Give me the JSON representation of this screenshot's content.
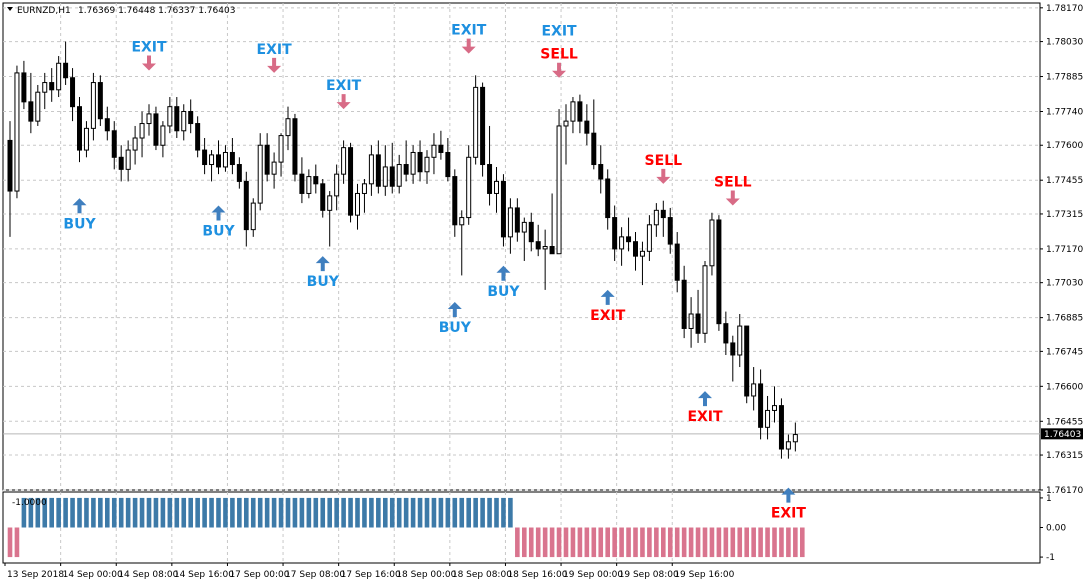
{
  "header": {
    "symbol_tf": "EURNZD,H1",
    "ohlc": "1.76369 1.76448 1.76337 1.76403"
  },
  "colors": {
    "bull": "#ffffff",
    "bear": "#000000",
    "buy": "#3f7fbf",
    "buy_text": "#1e90e0",
    "exit_blue": "#1e90e0",
    "sell": "#ff0000",
    "arrow_pink": "#d86b86",
    "hist_pos": "#3d7aa8",
    "hist_neg": "#d9748e",
    "grid": "#c8c8c8"
  },
  "chart_data": [
    {
      "type": "candlestick",
      "symbol": "EURNZD",
      "timeframe": "H1",
      "ylim": [
        1.7617,
        1.7819
      ],
      "y_ticks": [
        "1.78170",
        "1.78030",
        "1.77885",
        "1.77740",
        "1.77600",
        "1.77455",
        "1.77315",
        "1.77170",
        "1.77030",
        "1.76885",
        "1.76745",
        "1.76600",
        "1.76455",
        "1.76315",
        "1.76170"
      ],
      "x_ticks": [
        "13 Sep 2018",
        "14 Sep 00:00",
        "14 Sep 08:00",
        "14 Sep 16:00",
        "17 Sep 00:00",
        "17 Sep 08:00",
        "17 Sep 16:00",
        "18 Sep 00:00",
        "18 Sep 08:00",
        "18 Sep 16:00",
        "19 Sep 00:00",
        "19 Sep 08:00",
        "19 Sep 16:00"
      ],
      "current_price": "1.76403",
      "candles": [
        [
          1.7762,
          1.777,
          1.7722,
          1.7741
        ],
        [
          1.7741,
          1.7793,
          1.7738,
          1.779
        ],
        [
          1.779,
          1.7795,
          1.7775,
          1.7778
        ],
        [
          1.7778,
          1.779,
          1.7765,
          1.777
        ],
        [
          1.777,
          1.7785,
          1.7768,
          1.7782
        ],
        [
          1.7782,
          1.779,
          1.7775,
          1.7786
        ],
        [
          1.7786,
          1.7792,
          1.7778,
          1.7783
        ],
        [
          1.7783,
          1.7797,
          1.778,
          1.7794
        ],
        [
          1.7794,
          1.7803,
          1.7785,
          1.7788
        ],
        [
          1.7788,
          1.7792,
          1.777,
          1.7776
        ],
        [
          1.7776,
          1.778,
          1.7753,
          1.7758
        ],
        [
          1.7758,
          1.777,
          1.7755,
          1.7767
        ],
        [
          1.7767,
          1.779,
          1.7762,
          1.7786
        ],
        [
          1.7786,
          1.7789,
          1.7768,
          1.7771
        ],
        [
          1.7771,
          1.7776,
          1.7762,
          1.7766
        ],
        [
          1.7766,
          1.777,
          1.775,
          1.7755
        ],
        [
          1.7755,
          1.776,
          1.7745,
          1.775
        ],
        [
          1.775,
          1.7762,
          1.7745,
          1.7758
        ],
        [
          1.7758,
          1.7768,
          1.7752,
          1.7763
        ],
        [
          1.7763,
          1.7774,
          1.7755,
          1.7769
        ],
        [
          1.7769,
          1.7777,
          1.7764,
          1.7773
        ],
        [
          1.7773,
          1.7776,
          1.7758,
          1.776
        ],
        [
          1.776,
          1.777,
          1.7755,
          1.7768
        ],
        [
          1.7768,
          1.778,
          1.7765,
          1.7776
        ],
        [
          1.7776,
          1.778,
          1.7763,
          1.7766
        ],
        [
          1.7766,
          1.7777,
          1.7762,
          1.7774
        ],
        [
          1.7774,
          1.7779,
          1.7765,
          1.7769
        ],
        [
          1.7769,
          1.7772,
          1.7755,
          1.7758
        ],
        [
          1.7758,
          1.7763,
          1.7748,
          1.7752
        ],
        [
          1.7752,
          1.7758,
          1.7745,
          1.7756
        ],
        [
          1.7756,
          1.7762,
          1.7748,
          1.7751
        ],
        [
          1.7751,
          1.776,
          1.7749,
          1.7757
        ],
        [
          1.7757,
          1.7763,
          1.7748,
          1.7752
        ],
        [
          1.7752,
          1.7755,
          1.7742,
          1.7745
        ],
        [
          1.7745,
          1.7749,
          1.7718,
          1.7725
        ],
        [
          1.7725,
          1.7738,
          1.7722,
          1.7736
        ],
        [
          1.7736,
          1.7765,
          1.7733,
          1.776
        ],
        [
          1.776,
          1.7765,
          1.7745,
          1.7748
        ],
        [
          1.7748,
          1.7757,
          1.7742,
          1.7753
        ],
        [
          1.7753,
          1.7765,
          1.7747,
          1.7764
        ],
        [
          1.7764,
          1.7776,
          1.7758,
          1.7771
        ],
        [
          1.7771,
          1.7773,
          1.7745,
          1.7748
        ],
        [
          1.7748,
          1.7755,
          1.7736,
          1.774
        ],
        [
          1.774,
          1.775,
          1.7738,
          1.7747
        ],
        [
          1.7747,
          1.7752,
          1.774,
          1.7744
        ],
        [
          1.7744,
          1.7746,
          1.773,
          1.7733
        ],
        [
          1.7733,
          1.7741,
          1.7718,
          1.7739
        ],
        [
          1.7739,
          1.7752,
          1.7733,
          1.7748
        ],
        [
          1.7748,
          1.7762,
          1.7744,
          1.7759
        ],
        [
          1.7759,
          1.7761,
          1.7728,
          1.7731
        ],
        [
          1.7731,
          1.7744,
          1.7725,
          1.774
        ],
        [
          1.774,
          1.7746,
          1.7732,
          1.7744
        ],
        [
          1.7744,
          1.776,
          1.7739,
          1.7756
        ],
        [
          1.7756,
          1.7762,
          1.774,
          1.7743
        ],
        [
          1.7743,
          1.776,
          1.7739,
          1.7751
        ],
        [
          1.7751,
          1.7761,
          1.774,
          1.7743
        ],
        [
          1.7743,
          1.7756,
          1.774,
          1.7752
        ],
        [
          1.7752,
          1.7762,
          1.7745,
          1.7748
        ],
        [
          1.7748,
          1.776,
          1.7744,
          1.7757
        ],
        [
          1.7757,
          1.7762,
          1.7745,
          1.7749
        ],
        [
          1.7749,
          1.7758,
          1.7744,
          1.7755
        ],
        [
          1.7755,
          1.7765,
          1.7748,
          1.776
        ],
        [
          1.776,
          1.7766,
          1.7754,
          1.7757
        ],
        [
          1.7757,
          1.7763,
          1.7745,
          1.7747
        ],
        [
          1.7747,
          1.775,
          1.7722,
          1.7727
        ],
        [
          1.7727,
          1.7733,
          1.7706,
          1.773
        ],
        [
          1.773,
          1.776,
          1.7727,
          1.7755
        ],
        [
          1.7755,
          1.7789,
          1.7752,
          1.7784
        ],
        [
          1.7784,
          1.7786,
          1.7747,
          1.7752
        ],
        [
          1.7752,
          1.7768,
          1.7735,
          1.774
        ],
        [
          1.774,
          1.7751,
          1.7732,
          1.7745
        ],
        [
          1.7745,
          1.7748,
          1.7718,
          1.7722
        ],
        [
          1.7722,
          1.7738,
          1.7715,
          1.7734
        ],
        [
          1.7734,
          1.7738,
          1.772,
          1.7724
        ],
        [
          1.7724,
          1.773,
          1.7712,
          1.7728
        ],
        [
          1.7728,
          1.7732,
          1.7716,
          1.772
        ],
        [
          1.772,
          1.7727,
          1.7714,
          1.7717
        ],
        [
          1.7717,
          1.7725,
          1.77,
          1.7718
        ],
        [
          1.7718,
          1.774,
          1.7715,
          1.7715
        ],
        [
          1.7715,
          1.7775,
          1.7715,
          1.7768
        ],
        [
          1.7768,
          1.7777,
          1.7752,
          1.777
        ],
        [
          1.777,
          1.778,
          1.7765,
          1.7778
        ],
        [
          1.7778,
          1.7781,
          1.7765,
          1.777
        ],
        [
          1.777,
          1.7777,
          1.776,
          1.7765
        ],
        [
          1.7765,
          1.7779,
          1.775,
          1.7752
        ],
        [
          1.7752,
          1.776,
          1.774,
          1.7746
        ],
        [
          1.7746,
          1.775,
          1.7725,
          1.773
        ],
        [
          1.773,
          1.7735,
          1.7712,
          1.7717
        ],
        [
          1.7717,
          1.7726,
          1.771,
          1.7722
        ],
        [
          1.7722,
          1.773,
          1.7716,
          1.772
        ],
        [
          1.772,
          1.7724,
          1.7708,
          1.7714
        ],
        [
          1.7714,
          1.772,
          1.7702,
          1.7716
        ],
        [
          1.7716,
          1.7731,
          1.7712,
          1.7727
        ],
        [
          1.7727,
          1.7736,
          1.7722,
          1.7733
        ],
        [
          1.7733,
          1.7737,
          1.7722,
          1.773
        ],
        [
          1.773,
          1.7734,
          1.7715,
          1.7719
        ],
        [
          1.7719,
          1.7724,
          1.7699,
          1.7704
        ],
        [
          1.7704,
          1.771,
          1.768,
          1.7684
        ],
        [
          1.7684,
          1.7697,
          1.7676,
          1.769
        ],
        [
          1.769,
          1.77,
          1.7678,
          1.7682
        ],
        [
          1.7682,
          1.7712,
          1.7678,
          1.771
        ],
        [
          1.771,
          1.7732,
          1.7706,
          1.7729
        ],
        [
          1.7729,
          1.7731,
          1.7683,
          1.7686
        ],
        [
          1.7686,
          1.7691,
          1.7673,
          1.7678
        ],
        [
          1.7678,
          1.7681,
          1.7662,
          1.7673
        ],
        [
          1.7673,
          1.769,
          1.7668,
          1.7685
        ],
        [
          1.7685,
          1.7685,
          1.7653,
          1.7656
        ],
        [
          1.7656,
          1.7668,
          1.765,
          1.7661
        ],
        [
          1.7661,
          1.7667,
          1.7638,
          1.7643
        ],
        [
          1.7643,
          1.7656,
          1.7638,
          1.765
        ],
        [
          1.765,
          1.766,
          1.7645,
          1.7652
        ],
        [
          1.7652,
          1.7655,
          1.763,
          1.7634
        ],
        [
          1.7634,
          1.764,
          1.763,
          1.7637
        ],
        [
          1.7637,
          1.7645,
          1.7633,
          1.764
        ]
      ],
      "signals": [
        {
          "label": "BUY",
          "bar": 10,
          "price": 1.7738,
          "kind": "buy"
        },
        {
          "label": "EXIT",
          "bar": 20,
          "price": 1.7791,
          "kind": "exit_blue"
        },
        {
          "label": "BUY",
          "bar": 30,
          "price": 1.7735,
          "kind": "buy"
        },
        {
          "label": "EXIT",
          "bar": 38,
          "price": 1.779,
          "kind": "exit_blue"
        },
        {
          "label": "BUY",
          "bar": 45,
          "price": 1.7714,
          "kind": "buy"
        },
        {
          "label": "EXIT",
          "bar": 48,
          "price": 1.7775,
          "kind": "exit_blue"
        },
        {
          "label": "BUY",
          "bar": 64,
          "price": 1.7695,
          "kind": "buy"
        },
        {
          "label": "EXIT",
          "bar": 66,
          "price": 1.7798,
          "kind": "exit_blue"
        },
        {
          "label": "BUY",
          "bar": 71,
          "price": 1.771,
          "kind": "buy"
        },
        {
          "label": "EXIT",
          "bar": 79,
          "price": 1.7798,
          "kind": "exit_blue"
        },
        {
          "label": "SELL",
          "bar": 79,
          "price": 1.7788,
          "kind": "sell"
        },
        {
          "label": "EXIT",
          "bar": 86,
          "price": 1.77,
          "kind": "exit_red"
        },
        {
          "label": "SELL",
          "bar": 94,
          "price": 1.7744,
          "kind": "sell"
        },
        {
          "label": "EXIT",
          "bar": 100,
          "price": 1.7658,
          "kind": "exit_red"
        },
        {
          "label": "SELL",
          "bar": 104,
          "price": 1.7735,
          "kind": "sell"
        },
        {
          "label": "EXIT",
          "bar": 112,
          "price": 1.7618,
          "kind": "exit_red"
        }
      ]
    },
    {
      "type": "bar",
      "name": "indicator",
      "label": "-1.0000",
      "y_ticks": [
        "1",
        "0.00",
        "-1"
      ],
      "ylim": [
        -1.2,
        1.2
      ],
      "segments": [
        {
          "from_bar": 0,
          "to_bar": 1,
          "value": -1
        },
        {
          "from_bar": 2,
          "to_bar": 72,
          "value": 1
        },
        {
          "from_bar": 73,
          "to_bar": 114,
          "value": -1
        }
      ]
    }
  ]
}
